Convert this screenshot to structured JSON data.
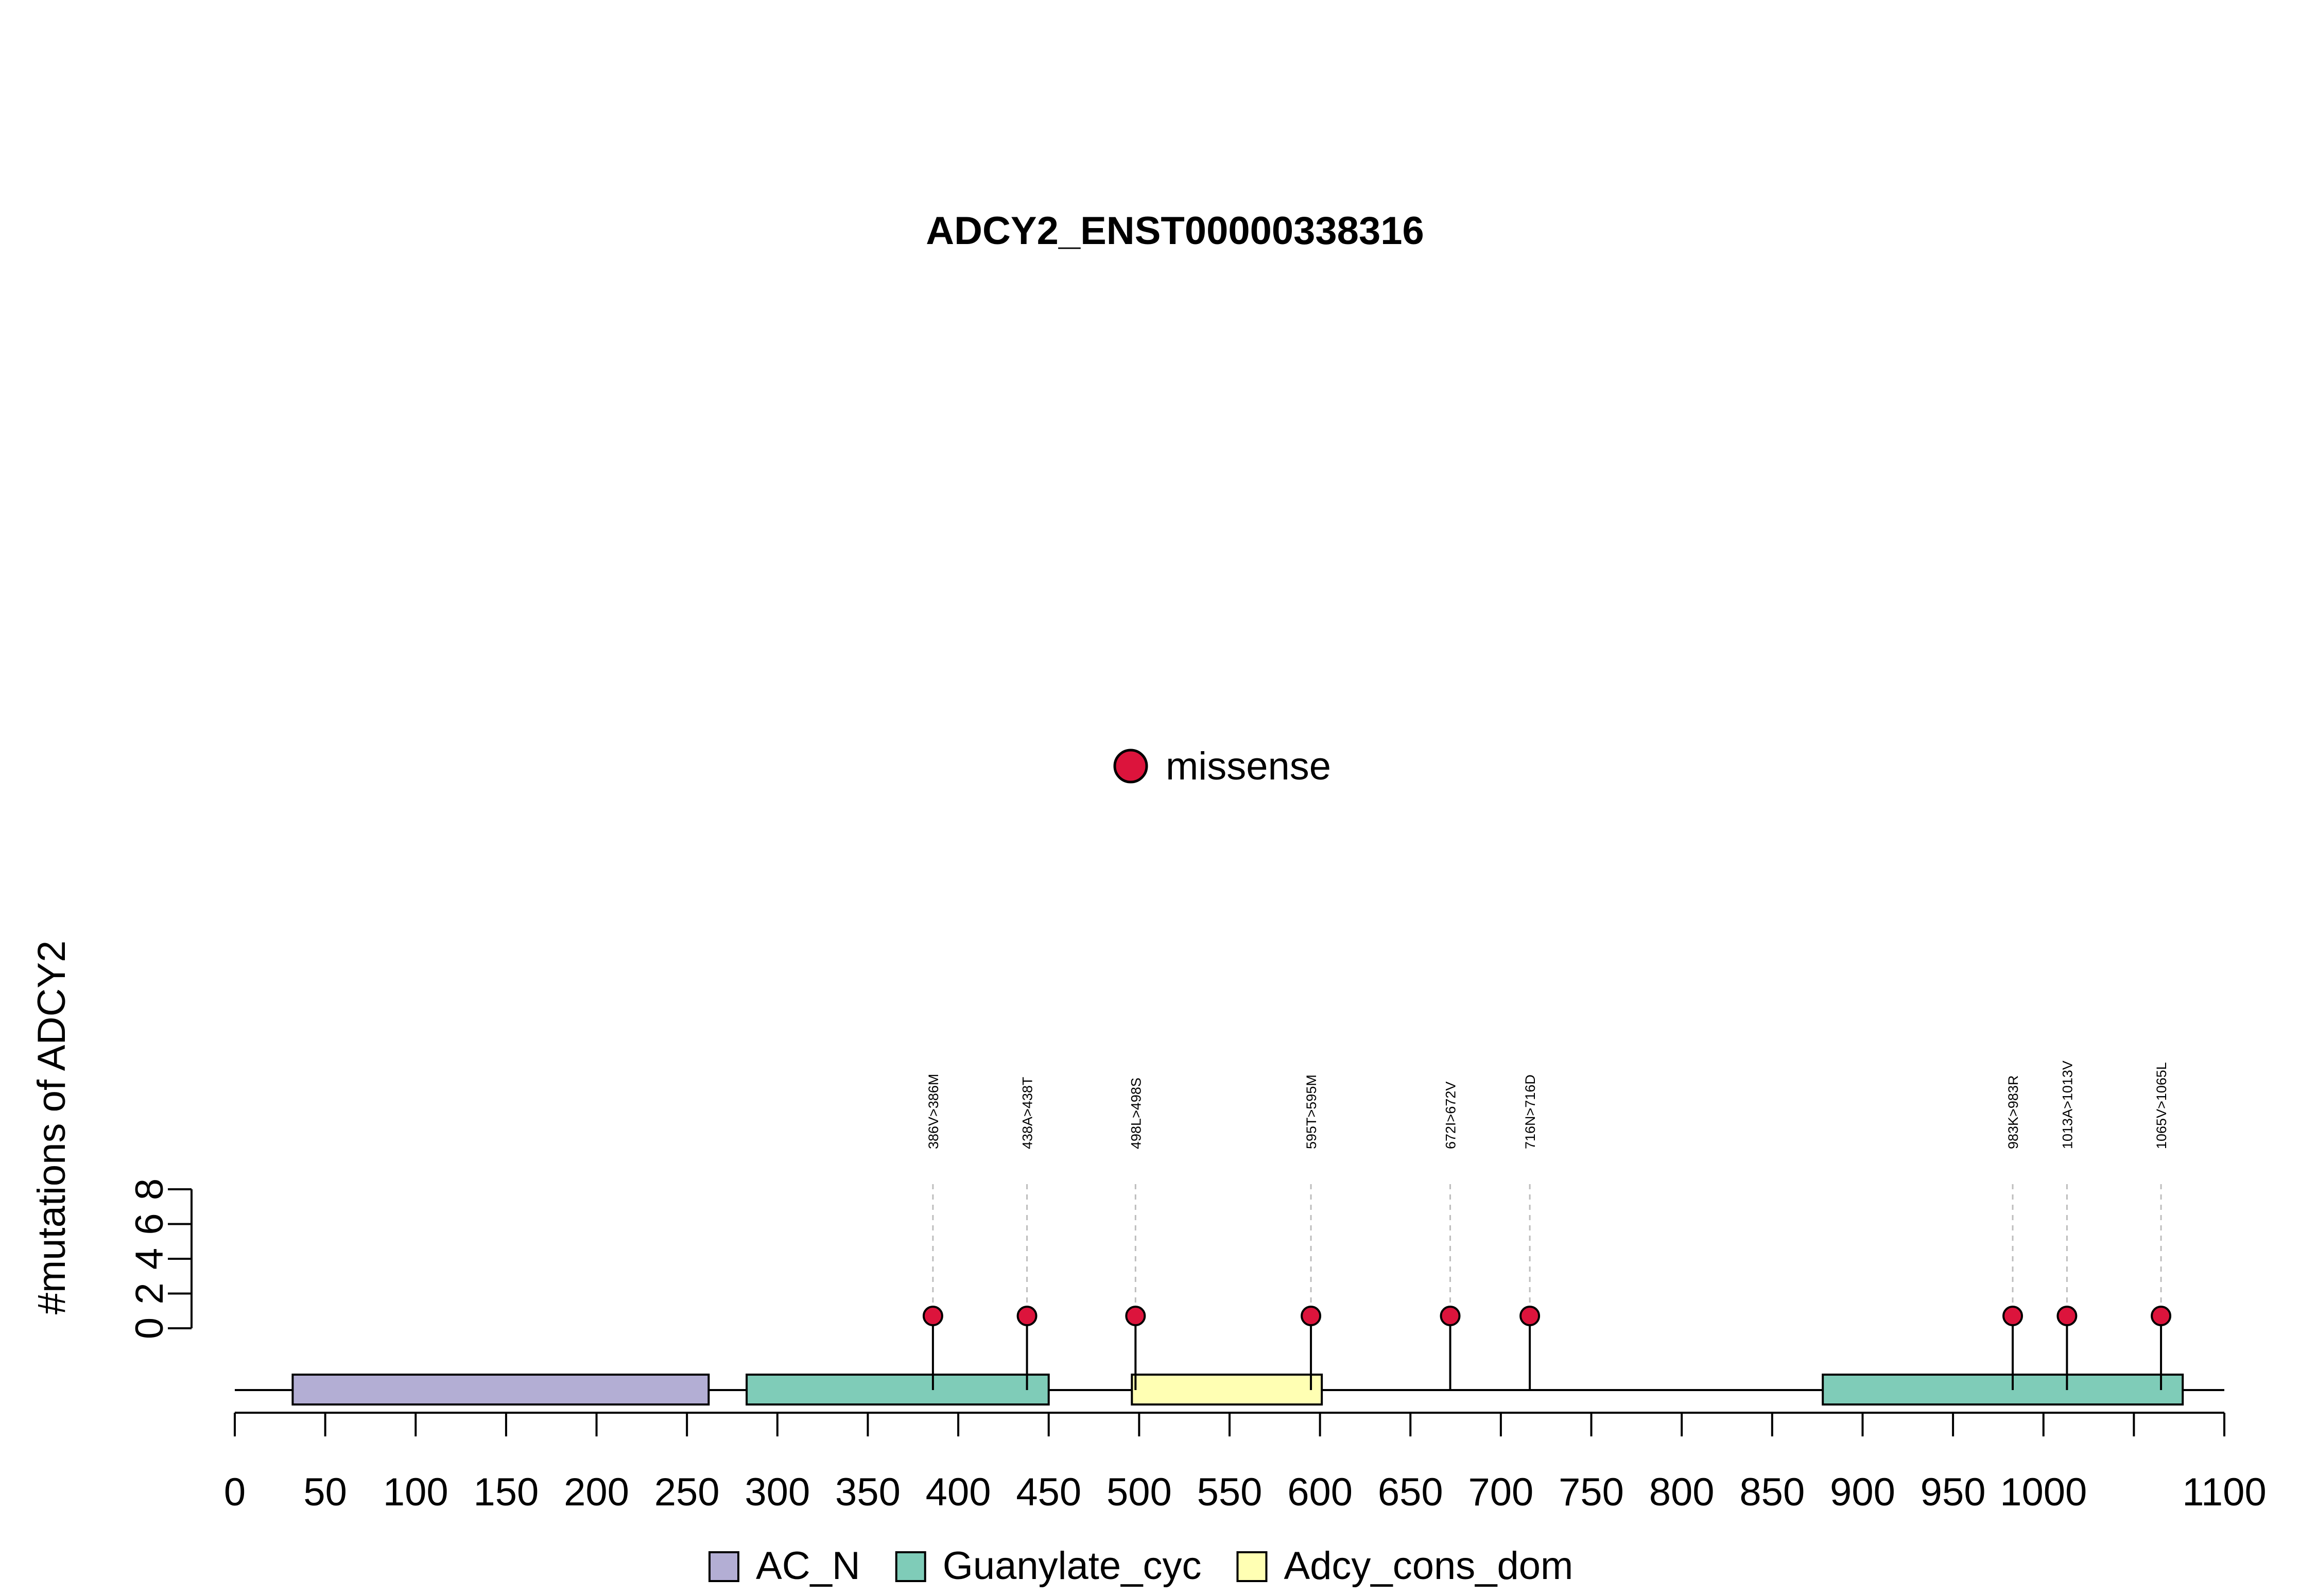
{
  "chart_data": {
    "type": "lollipop",
    "title": "ADCY2_ENST00000338316",
    "ylabel": "#mutations of ADCY2",
    "x_axis": {
      "range": [
        0,
        1100
      ],
      "ticks": [
        0,
        50,
        100,
        150,
        200,
        250,
        300,
        350,
        400,
        450,
        500,
        550,
        600,
        650,
        700,
        750,
        800,
        850,
        900,
        950,
        1000,
        1100
      ]
    },
    "y_axis": {
      "range": [
        0,
        8
      ],
      "ticks": [
        0,
        2,
        4,
        6,
        8
      ]
    },
    "mutation_legend": [
      {
        "label": "missense",
        "color": "#DC143C"
      }
    ],
    "domain_legend": [
      {
        "label": "AC_N",
        "color": "#B3AED4"
      },
      {
        "label": "Guanylate_cyc",
        "color": "#7FCCB8"
      },
      {
        "label": "Adcy_cons_dom",
        "color": "#FFFFB3"
      }
    ],
    "domains": [
      {
        "name": "AC_N",
        "start": 32,
        "end": 262
      },
      {
        "name": "Guanylate_cyc",
        "start": 283,
        "end": 450
      },
      {
        "name": "Adcy_cons_dom",
        "start": 496,
        "end": 601
      },
      {
        "name": "Guanylate_cyc",
        "start": 878,
        "end": 1077
      }
    ],
    "protein_length": 1100,
    "mutations": [
      {
        "position": 386,
        "label": "386V>386M",
        "count": 1,
        "type": "missense"
      },
      {
        "position": 438,
        "label": "438A>438T",
        "count": 1,
        "type": "missense"
      },
      {
        "position": 498,
        "label": "498L>498S",
        "count": 1,
        "type": "missense"
      },
      {
        "position": 595,
        "label": "595T>595M",
        "count": 1,
        "type": "missense"
      },
      {
        "position": 672,
        "label": "672I>672V",
        "count": 1,
        "type": "missense"
      },
      {
        "position": 716,
        "label": "716N>716D",
        "count": 1,
        "type": "missense"
      },
      {
        "position": 983,
        "label": "983K>983R",
        "count": 1,
        "type": "missense"
      },
      {
        "position": 1013,
        "label": "1013A>1013V",
        "count": 1,
        "type": "missense"
      },
      {
        "position": 1065,
        "label": "1065V>1065L",
        "count": 1,
        "type": "missense"
      }
    ]
  }
}
